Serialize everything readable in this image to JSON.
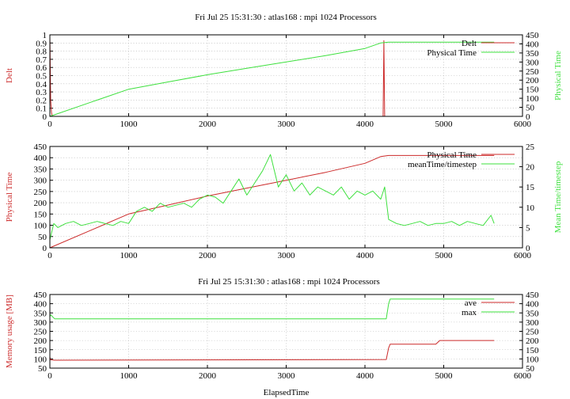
{
  "figure_title": "Fri Jul 25 15:31:30 : atlas168 : mpi 1024 Processors",
  "colors": {
    "red": "#cc2a2a",
    "green": "#3ee03e"
  },
  "chart_data": [
    {
      "type": "line",
      "title": "Fri Jul 25 15:31:30 : atlas168 : mpi 1024 Processors",
      "xlabel": "",
      "ylabel": "Delt",
      "y2label": "Physical Time",
      "xlim": [
        0,
        6000
      ],
      "ylim": [
        0,
        1
      ],
      "y2lim": [
        0,
        450
      ],
      "xticks": [
        0,
        1000,
        2000,
        3000,
        4000,
        5000,
        6000
      ],
      "yticks": [
        0,
        0.1,
        0.2,
        0.3,
        0.4,
        0.5,
        0.6,
        0.7,
        0.8,
        0.9,
        1
      ],
      "y2ticks": [
        0,
        50,
        100,
        150,
        200,
        250,
        300,
        350,
        400,
        450
      ],
      "grid": true,
      "legend": "top-right",
      "series": [
        {
          "name": "Delt",
          "color": "#cc2a2a",
          "axis": "y",
          "x": [
            0,
            10,
            20,
            30,
            4200,
            4230,
            4240,
            4250,
            5640
          ],
          "y": [
            0.97,
            0.2,
            0.05,
            0,
            0,
            0,
            0.93,
            0,
            0
          ]
        },
        {
          "name": "Physical Time",
          "color": "#3ee03e",
          "axis": "y2",
          "x": [
            0,
            500,
            1000,
            1500,
            2000,
            2500,
            3000,
            3500,
            4000,
            4200,
            4300,
            5000,
            5640
          ],
          "y": [
            0,
            75,
            150,
            190,
            230,
            265,
            300,
            335,
            375,
            405,
            410,
            410,
            410
          ]
        }
      ]
    },
    {
      "type": "line",
      "title": "",
      "xlabel": "",
      "ylabel": "Physical Time",
      "y2label": "Mean Time/timestep",
      "xlim": [
        0,
        6000
      ],
      "ylim": [
        0,
        450
      ],
      "y2lim": [
        0,
        25
      ],
      "xticks": [
        0,
        1000,
        2000,
        3000,
        4000,
        5000,
        6000
      ],
      "yticks": [
        0,
        50,
        100,
        150,
        200,
        250,
        300,
        350,
        400,
        450
      ],
      "y2ticks": [
        0,
        5,
        10,
        15,
        20,
        25
      ],
      "grid": true,
      "legend": "top-right",
      "series": [
        {
          "name": "Physical Time",
          "color": "#cc2a2a",
          "axis": "y",
          "x": [
            0,
            500,
            1000,
            1500,
            2000,
            2500,
            3000,
            3500,
            4000,
            4200,
            4300,
            5000,
            5640
          ],
          "y": [
            0,
            75,
            150,
            190,
            230,
            265,
            300,
            335,
            375,
            405,
            410,
            410,
            410
          ]
        },
        {
          "name": "meanTime/timestep",
          "color": "#3ee03e",
          "axis": "y2",
          "x": [
            0,
            50,
            100,
            200,
            300,
            400,
            500,
            600,
            700,
            800,
            900,
            1000,
            1100,
            1200,
            1300,
            1400,
            1500,
            1600,
            1700,
            1800,
            1900,
            2000,
            2100,
            2200,
            2300,
            2400,
            2500,
            2600,
            2700,
            2800,
            2900,
            3000,
            3100,
            3200,
            3300,
            3400,
            3500,
            3600,
            3700,
            3800,
            3900,
            4000,
            4100,
            4200,
            4250,
            4300,
            4400,
            4500,
            4600,
            4700,
            4800,
            4900,
            5000,
            5100,
            5200,
            5300,
            5400,
            5500,
            5600,
            5640
          ],
          "y": [
            2,
            6,
            5,
            6,
            6.5,
            5.5,
            6,
            6.5,
            6,
            5.5,
            6.5,
            6,
            9,
            10,
            9,
            11,
            10,
            10.5,
            11,
            10,
            12,
            13,
            12.5,
            11,
            14,
            17,
            13,
            16,
            19,
            23,
            15,
            18,
            14,
            16,
            13,
            15,
            14,
            13,
            15,
            12,
            14,
            13,
            14,
            12,
            15,
            7,
            6,
            5.5,
            6,
            6.5,
            5.5,
            6,
            6,
            6.5,
            5.5,
            6.5,
            6,
            5.5,
            8,
            6
          ]
        }
      ]
    },
    {
      "type": "line",
      "title": "Fri Jul 25 15:31:30 : atlas168 : mpi 1024 Processors",
      "xlabel": "ElapsedTime",
      "ylabel": "Memory usage [MB]",
      "y2label": "",
      "xlim": [
        0,
        6000
      ],
      "ylim": [
        50,
        450
      ],
      "y2lim": [
        50,
        450
      ],
      "xticks": [
        0,
        1000,
        2000,
        3000,
        4000,
        5000,
        6000
      ],
      "yticks": [
        50,
        100,
        150,
        200,
        250,
        300,
        350,
        400,
        450
      ],
      "y2ticks": [
        50,
        100,
        150,
        200,
        250,
        300,
        350,
        400,
        450
      ],
      "grid": true,
      "legend": "top-right",
      "series": [
        {
          "name": "ave",
          "color": "#cc2a2a",
          "axis": "y",
          "x": [
            0,
            10,
            60,
            4270,
            4300,
            4320,
            4900,
            4950,
            5640
          ],
          "y": [
            110,
            95,
            93,
            97,
            160,
            180,
            180,
            200,
            200
          ]
        },
        {
          "name": "max",
          "color": "#3ee03e",
          "axis": "y",
          "x": [
            0,
            10,
            60,
            4270,
            4300,
            4320,
            5640
          ],
          "y": [
            330,
            340,
            318,
            318,
            400,
            425,
            425
          ]
        }
      ]
    }
  ]
}
